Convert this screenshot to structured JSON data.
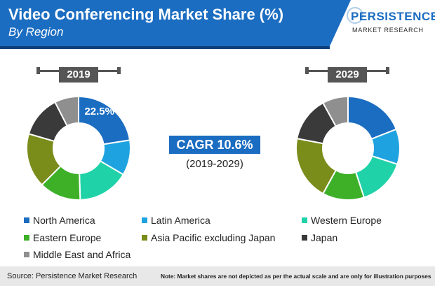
{
  "title": "Video Conferencing Market Share (%)",
  "subtitle": "By Region",
  "logo": {
    "main": "PERSISTENCE",
    "sub": "MARKET RESEARCH"
  },
  "cagr": {
    "label": "CAGR 10.6%",
    "period": "(2019-2029)"
  },
  "footer": {
    "source": "Source: Persistence Market Research",
    "note": "Note: Market shares are not depicted as per the actual scale and are only for illustration purposes"
  },
  "chart_data": [
    {
      "type": "pie",
      "title": "2019",
      "categories": [
        "North America",
        "Latin America",
        "Western Europe",
        "Eastern Europe",
        "Asia Pacific excluding Japan",
        "Japan",
        "Middle East and Africa"
      ],
      "values": [
        22.5,
        11,
        16,
        13,
        17,
        13,
        7.5
      ],
      "data_labels": [
        "22.5%",
        "",
        "",
        "",
        "",
        "",
        ""
      ]
    },
    {
      "type": "pie",
      "title": "2029",
      "categories": [
        "North America",
        "Latin America",
        "Western Europe",
        "Eastern Europe",
        "Asia Pacific excluding Japan",
        "Japan",
        "Middle East and Africa"
      ],
      "values": [
        19,
        11,
        15,
        13,
        20,
        14,
        8
      ],
      "data_labels": [
        "",
        "",
        "",
        "",
        "",
        "",
        ""
      ]
    }
  ],
  "legend": [
    {
      "label": "North America",
      "color": "#1b6dc1"
    },
    {
      "label": "Latin America",
      "color": "#1fa3e0"
    },
    {
      "label": "Western Europe",
      "color": "#20d2a8"
    },
    {
      "label": "Eastern Europe",
      "color": "#3db028"
    },
    {
      "label": "Asia Pacific excluding Japan",
      "color": "#7a8c1a"
    },
    {
      "label": "Japan",
      "color": "#3a3a3a"
    },
    {
      "label": "Middle East and Africa",
      "color": "#8f8f8f"
    }
  ]
}
